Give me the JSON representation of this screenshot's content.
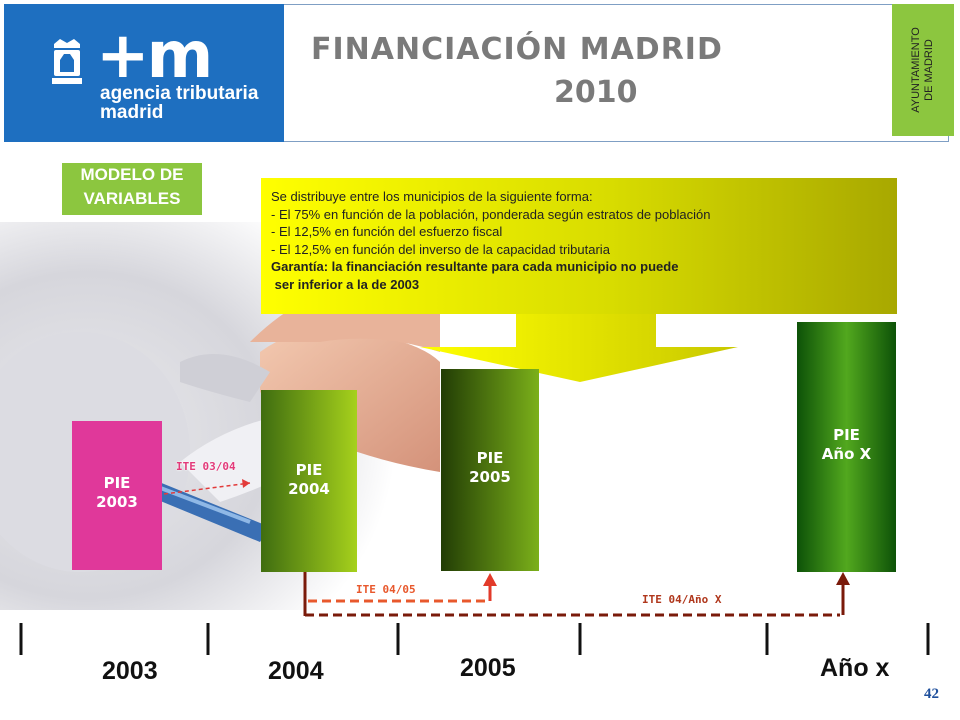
{
  "logo": {
    "brand": "+m",
    "line1": "agencia tributaria",
    "line2": "madrid"
  },
  "title": {
    "line1": "FINANCIACIÓN  MADRID",
    "line2": "2010"
  },
  "side_tag": {
    "line1": "AYUNTAMIENTO",
    "line2": "DE MADRID"
  },
  "modelo": {
    "line1": "MODELO DE",
    "line2": "VARIABLES"
  },
  "info": {
    "intro": "Se distribuye entre los municipios de la siguiente forma:",
    "items": [
      "- El 75% en función de la población, ponderada según estratos de población",
      "- El 12,5% en función del esfuerzo fiscal",
      "- El 12,5% en función del inverso de la capacidad tributaria"
    ],
    "guarantee_line1": "Garantía: la financiación resultante para cada municipio no puede",
    "guarantee_line2": " ser inferior a la de 2003"
  },
  "bars": [
    {
      "line1": "PIE",
      "line2": "2003"
    },
    {
      "line1": "PIE",
      "line2": "2004"
    },
    {
      "line1": "PIE",
      "line2": "2005"
    },
    {
      "line1": "PIE",
      "line2": "Año X"
    }
  ],
  "ite_labels": {
    "ite_03_04": "ITE 03/04",
    "ite_04_05": "ITE 04/05",
    "ite_04_x": "ITE 04/Año X"
  },
  "years": [
    "2003",
    "2004",
    "2005",
    "Año x"
  ],
  "page_number": "42",
  "colors": {
    "brand_blue": "#1e6fc0",
    "accent_green": "#8cc63f",
    "info_yellow": "#ffff00",
    "pie_2003": "#e0389a",
    "ite_red": "#e23a2a",
    "ite_dark": "#7a1a0a"
  }
}
